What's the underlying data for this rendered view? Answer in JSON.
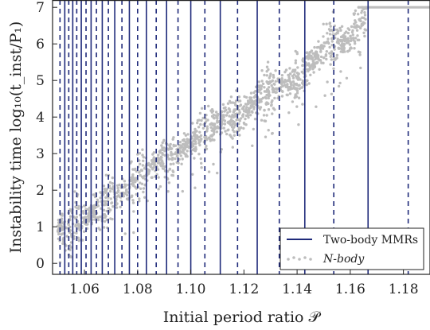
{
  "chart_data": {
    "type": "scatter",
    "title": "",
    "xlabel": "Initial period ratio 𝒫",
    "ylabel": "Instability time log₁₀(t_inst/P₁)",
    "xlim": [
      1.048,
      1.19
    ],
    "ylim": [
      -0.3,
      7.2
    ],
    "x_ticks": [
      1.06,
      1.08,
      1.1,
      1.12,
      1.14,
      1.16,
      1.18
    ],
    "x_tick_labels": [
      "1.06",
      "1.08",
      "1.10",
      "1.12",
      "1.14",
      "1.16",
      "1.18"
    ],
    "y_ticks": [
      0,
      1,
      2,
      3,
      4,
      5,
      6,
      7
    ],
    "y_tick_labels": [
      "0",
      "1",
      "2",
      "3",
      "4",
      "5",
      "6",
      "7"
    ],
    "grid": false,
    "legend_position": "bottom-right",
    "legend": [
      {
        "label": "Two-body MMRs",
        "marker": "solid-line",
        "color": "#1f2a7a"
      },
      {
        "label": "N-body",
        "marker": "dots",
        "color": "#bdbdbd"
      }
    ],
    "series": [
      {
        "name": "Two-body MMRs",
        "kind": "vlines",
        "color": "#1f2a7a",
        "solid_x": [
          1.0526,
          1.0556,
          1.0588,
          1.0625,
          1.0667,
          1.0714,
          1.0769,
          1.0833,
          1.0909,
          1.1,
          1.1111,
          1.125,
          1.1429,
          1.1667
        ],
        "dashed_x": [
          1.0508,
          1.0541,
          1.0571,
          1.0606,
          1.0645,
          1.069,
          1.0741,
          1.08,
          1.087,
          1.0952,
          1.1053,
          1.1176,
          1.1333,
          1.1538,
          1.1818
        ]
      },
      {
        "name": "N-body",
        "kind": "scatter",
        "color": "#bdbdbd",
        "trend": [
          [
            1.05,
            0.9
          ],
          [
            1.055,
            1.0
          ],
          [
            1.06,
            1.3
          ],
          [
            1.065,
            1.5
          ],
          [
            1.07,
            1.75
          ],
          [
            1.075,
            2.0
          ],
          [
            1.08,
            2.3
          ],
          [
            1.085,
            2.65
          ],
          [
            1.09,
            2.85
          ],
          [
            1.095,
            3.05
          ],
          [
            1.1,
            3.3
          ],
          [
            1.105,
            3.6
          ],
          [
            1.11,
            3.85
          ],
          [
            1.115,
            4.0
          ],
          [
            1.12,
            4.15
          ],
          [
            1.125,
            4.5
          ],
          [
            1.13,
            4.7
          ],
          [
            1.135,
            4.95
          ],
          [
            1.14,
            5.0
          ],
          [
            1.145,
            5.5
          ],
          [
            1.15,
            5.9
          ],
          [
            1.155,
            5.95
          ],
          [
            1.16,
            6.15
          ],
          [
            1.165,
            6.8
          ],
          [
            1.17,
            7.0
          ],
          [
            1.19,
            7.0
          ]
        ]
      }
    ]
  }
}
